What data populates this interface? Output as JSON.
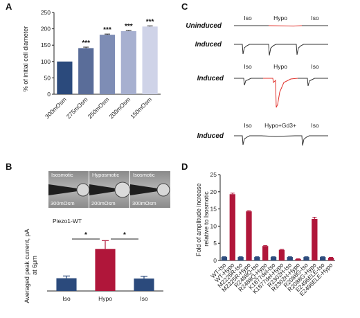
{
  "panels": {
    "a": "A",
    "b": "B",
    "c": "C",
    "d": "D"
  },
  "chart_data": [
    {
      "id": "A",
      "type": "bar",
      "ylabel": "% of initial cell diameter",
      "ylim": [
        0,
        250
      ],
      "yticks": [
        0,
        50,
        100,
        150,
        200,
        250
      ],
      "categories": [
        "300mOsm",
        "275mOsm",
        "250mOsm",
        "200mOsm",
        "150mOsm"
      ],
      "values": [
        100,
        141,
        182,
        193,
        207
      ],
      "errors": [
        0,
        3,
        2,
        2,
        2
      ],
      "colors": [
        "#2b4a7c",
        "#5a6d99",
        "#7e8db5",
        "#a7b0d0",
        "#cfd3e8"
      ],
      "annotations": [
        "",
        "***",
        "***",
        "***",
        "***"
      ]
    },
    {
      "id": "B",
      "type": "bar",
      "title": "Piezo1-WT",
      "ylabel": "Averaged peak current, pA at 6μm",
      "ylim": [
        0,
        2000
      ],
      "categories": [
        "Iso",
        "Hypo",
        "Iso"
      ],
      "values": [
        400,
        1320,
        390
      ],
      "errors": [
        70,
        260,
        70
      ],
      "colors": [
        "#2b4a7c",
        "#b0163a",
        "#2b4a7c"
      ],
      "significance": [
        {
          "from": 0,
          "to": 1,
          "label": "*"
        },
        {
          "from": 1,
          "to": 2,
          "label": "*"
        }
      ],
      "micrographs": {
        "top_labels": [
          "Isosmotic",
          "Hyposmotic",
          "Isosmotic"
        ],
        "bottom_labels": [
          "300mOsm",
          "200mOsm",
          "300mOsm"
        ]
      }
    },
    {
      "id": "D",
      "type": "bar",
      "ylabel": "Fold of amplitude increase relative to Isosmotic",
      "ylim": [
        0,
        25
      ],
      "yticks": [
        0,
        5,
        10,
        15,
        20,
        25
      ],
      "categories": [
        "WT-Iso",
        "WT-Hypo",
        "M2225R-Iso",
        "M2225R-Hypo",
        "R2488Q-Iso",
        "R2488Q-Hypo",
        "K1877del-Iso",
        "K1877del-Hypo",
        "R2302H-Iso",
        "R2302H-Hypo",
        "R2088G-Iso",
        "R2088G-Hypo",
        "E2496ELE-Iso",
        "E2496ELE-Hypo"
      ],
      "values": [
        1.0,
        19.3,
        1.0,
        14.3,
        1.0,
        4.2,
        1.0,
        3.1,
        1.0,
        0.4,
        1.0,
        12.1,
        1.0,
        0.8
      ],
      "errors": [
        0.1,
        0.3,
        0.1,
        0.2,
        0.1,
        0.15,
        0.1,
        0.15,
        0.1,
        0.1,
        0.1,
        0.5,
        0.1,
        0.1
      ],
      "colors": [
        "#2b4a7c",
        "#b0163a"
      ]
    }
  ],
  "traces_C": {
    "rows": [
      {
        "label": "Uninduced",
        "annotations": [
          "Iso",
          "Hypo",
          "Iso"
        ]
      },
      {
        "label": "Induced",
        "annotations": []
      },
      {
        "label": "Induced",
        "annotations": [
          "Iso",
          "Hypo",
          "Iso"
        ]
      },
      {
        "label": "Induced",
        "annotations": [
          "Iso",
          "Hypo+Gd3+",
          "Iso"
        ]
      }
    ],
    "colors": {
      "iso": "#333333",
      "hypo": "#e0302a"
    }
  }
}
